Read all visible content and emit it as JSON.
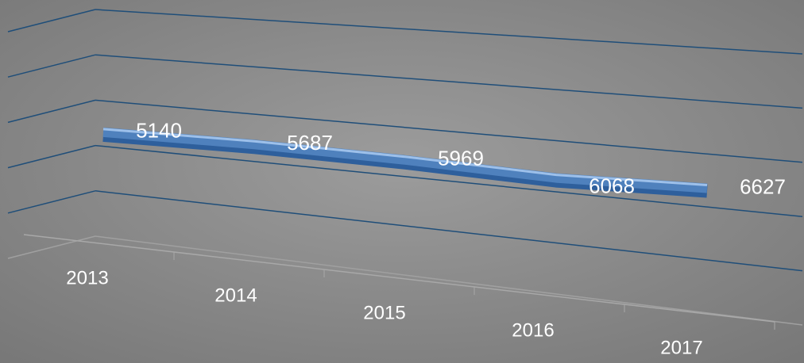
{
  "chart_data": {
    "type": "line3d",
    "categories": [
      "2013",
      "2014",
      "2015",
      "2016",
      "2017"
    ],
    "values": [
      5140,
      5687,
      5969,
      6068,
      6627
    ],
    "color": "#4f81bd",
    "ylim": [
      0,
      10000
    ],
    "yticks": [
      0,
      2000,
      4000,
      6000,
      8000,
      10000
    ],
    "grid": true
  }
}
